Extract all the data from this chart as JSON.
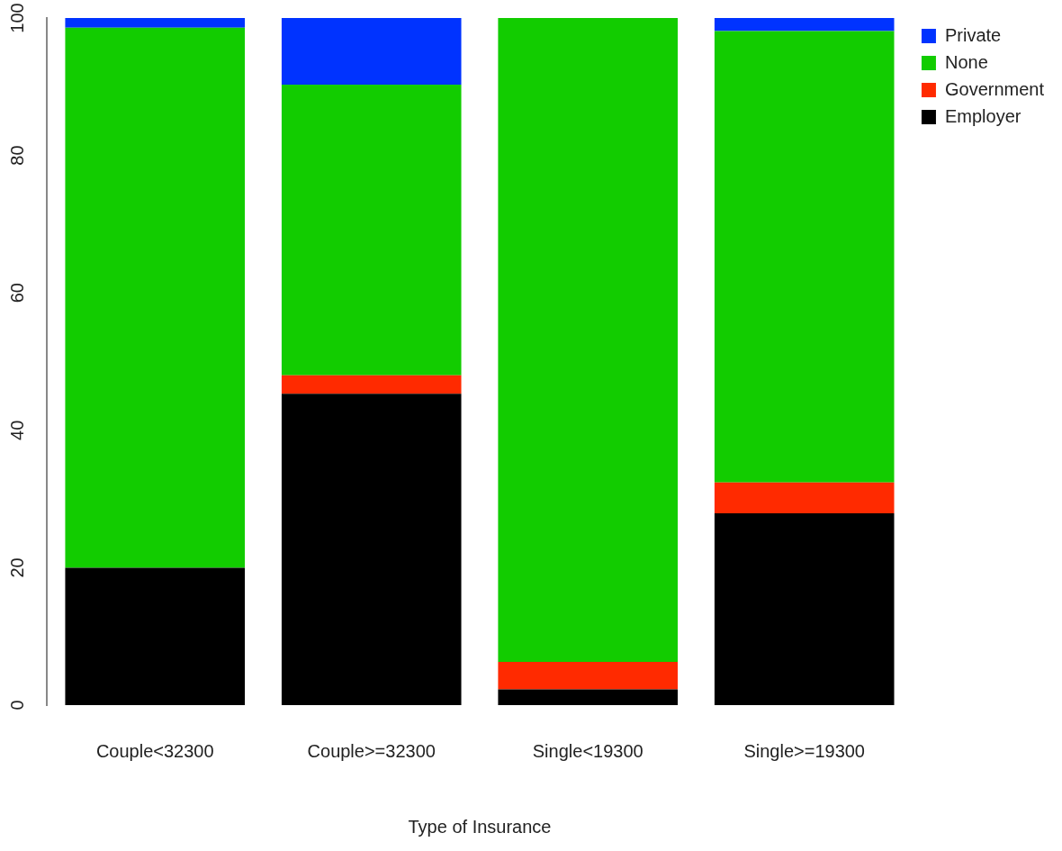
{
  "chart_data": {
    "type": "bar",
    "stacked": true,
    "xlabel": "Type of Insurance",
    "categories": [
      "Couple<32300",
      "Couple>=32300",
      "Single<19300",
      "Single>=19300"
    ],
    "series": [
      {
        "name": "Employer",
        "color": "#000000",
        "values": [
          20,
          45.3,
          2.3,
          27.9
        ]
      },
      {
        "name": "Government",
        "color": "#ff2a00",
        "values": [
          0,
          2.7,
          4,
          4.5
        ]
      },
      {
        "name": "None",
        "color": "#12cc00",
        "values": [
          78.6,
          42.3,
          93.7,
          65.7
        ]
      },
      {
        "name": "Private",
        "color": "#0033ff",
        "values": [
          1.4,
          9.7,
          0,
          2.0
        ]
      }
    ],
    "ylim": [
      0,
      100
    ],
    "yticks": [
      0,
      20,
      40,
      60,
      80,
      100
    ],
    "grid": false,
    "legend": "top right"
  }
}
